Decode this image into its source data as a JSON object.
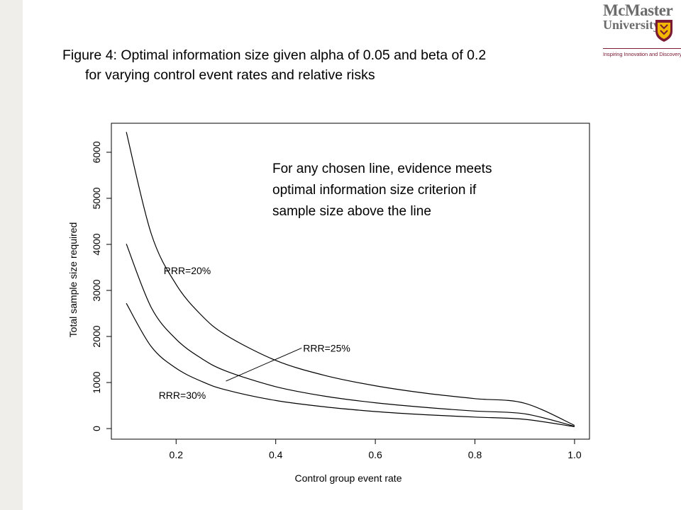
{
  "slide": {
    "title_line1": "Figure 4: Optimal information size given alpha of 0.05 and beta of 0.2",
    "title_line2": "for varying control event rates and relative risks"
  },
  "logo": {
    "name_line1": "McMaster",
    "name_line2": "University",
    "tagline": "Inspiring Innovation and Discovery",
    "colors": {
      "text": "#6b6b6b",
      "maroon": "#7a1a33",
      "gold": "#f2b800"
    },
    "icon": "crest-icon"
  },
  "chart_data": {
    "type": "line",
    "xlabel": "Control group event rate",
    "ylabel": "Total sample size required",
    "xlim": [
      0.07,
      1.03
    ],
    "ylim": [
      -230,
      6630
    ],
    "xticks": [
      0.2,
      0.4,
      0.6,
      0.8,
      1.0
    ],
    "xtick_labels": [
      "0.2",
      "0.4",
      "0.6",
      "0.8",
      "1.0"
    ],
    "yticks": [
      0,
      1000,
      2000,
      3000,
      4000,
      5000,
      6000
    ],
    "ytick_labels": [
      "0",
      "1000",
      "2000",
      "3000",
      "4000",
      "5000",
      "6000"
    ],
    "grid": false,
    "series": [
      {
        "name": "RRR=20%",
        "x": [
          0.1,
          0.15,
          0.2,
          0.25,
          0.3,
          0.4,
          0.5,
          0.6,
          0.7,
          0.8,
          0.9,
          1.0
        ],
        "y": [
          6440,
          4230,
          3130,
          2470,
          2030,
          1480,
          1150,
          930,
          770,
          650,
          550,
          70
        ]
      },
      {
        "name": "RRR=25%",
        "x": [
          0.1,
          0.15,
          0.2,
          0.25,
          0.3,
          0.4,
          0.5,
          0.6,
          0.7,
          0.8,
          0.9,
          1.0
        ],
        "y": [
          4010,
          2630,
          1940,
          1530,
          1250,
          910,
          700,
          560,
          460,
          380,
          320,
          50
        ]
      },
      {
        "name": "RRR=30%",
        "x": [
          0.1,
          0.15,
          0.2,
          0.25,
          0.3,
          0.4,
          0.5,
          0.6,
          0.7,
          0.8,
          0.9,
          1.0
        ],
        "y": [
          2720,
          1780,
          1310,
          1030,
          840,
          610,
          470,
          370,
          300,
          250,
          200,
          40
        ]
      }
    ],
    "annotations": [
      {
        "text": "RRR=20%",
        "x": 0.175,
        "y": 3430
      },
      {
        "text": "RRR=25%",
        "x": 0.455,
        "y": 1750,
        "pointer_to": {
          "x": 0.3,
          "y": 1030
        }
      },
      {
        "text": "RRR=30%",
        "x": 0.165,
        "y": 720
      }
    ],
    "note_lines": [
      "For any chosen line, evidence meets",
      "optimal information size criterion if",
      "sample size above the line"
    ]
  }
}
